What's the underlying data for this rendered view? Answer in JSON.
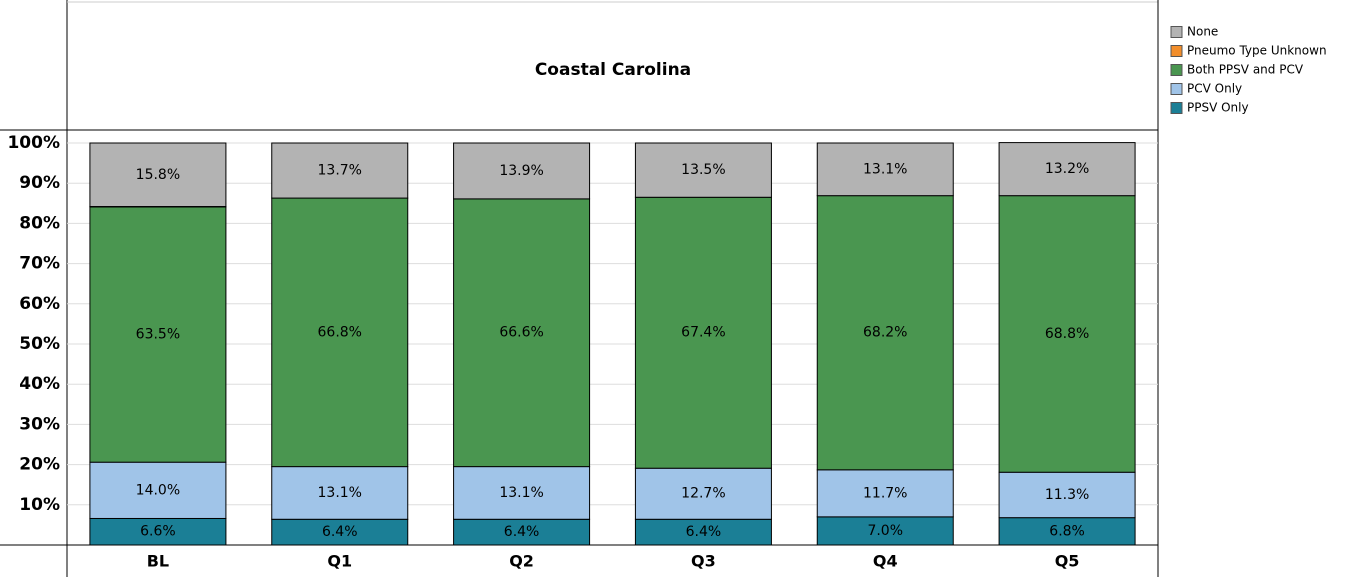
{
  "chart_data": {
    "type": "stacked_bar",
    "title": "Coastal Carolina",
    "categories": [
      "BL",
      "Q1",
      "Q2",
      "Q3",
      "Q4",
      "Q5"
    ],
    "series": [
      {
        "name": "PPSV Only",
        "color": "#1b7f96",
        "values": [
          6.6,
          6.4,
          6.4,
          6.4,
          7.0,
          6.8
        ],
        "value_labels": [
          "6.6%",
          "6.4%",
          "6.4%",
          "6.4%",
          "7.0%",
          "6.8%"
        ]
      },
      {
        "name": "PCV Only",
        "color": "#a0c4e8",
        "values": [
          14.0,
          13.1,
          13.1,
          12.7,
          11.7,
          11.3
        ],
        "value_labels": [
          "14.0%",
          "13.1%",
          "13.1%",
          "12.7%",
          "11.7%",
          "11.3%"
        ]
      },
      {
        "name": "Both PPSV and PCV",
        "color": "#4a9650",
        "values": [
          63.5,
          66.8,
          66.6,
          67.4,
          68.2,
          68.8
        ],
        "value_labels": [
          "63.5%",
          "66.8%",
          "66.6%",
          "67.4%",
          "68.2%",
          "68.8%"
        ]
      },
      {
        "name": "Pneumo Type Unknown",
        "color": "#f28e2b",
        "values": [
          0.1,
          0,
          0,
          0,
          0,
          0
        ]
      },
      {
        "name": "None",
        "color": "#b3b3b3",
        "values": [
          15.8,
          13.7,
          13.9,
          13.5,
          13.1,
          13.2
        ],
        "value_labels": [
          "15.8%",
          "13.7%",
          "13.9%",
          "13.5%",
          "13.1%",
          "13.2%"
        ]
      }
    ],
    "ylim": [
      0,
      100
    ],
    "yticks": [
      {
        "value": 10,
        "label": "10%"
      },
      {
        "value": 20,
        "label": "20%"
      },
      {
        "value": 30,
        "label": "30%"
      },
      {
        "value": 40,
        "label": "40%"
      },
      {
        "value": 50,
        "label": "50%"
      },
      {
        "value": 60,
        "label": "60%"
      },
      {
        "value": 70,
        "label": "70%"
      },
      {
        "value": 80,
        "label": "80%"
      },
      {
        "value": 90,
        "label": "90%"
      },
      {
        "value": 100,
        "label": "100%"
      }
    ],
    "grid": true
  }
}
